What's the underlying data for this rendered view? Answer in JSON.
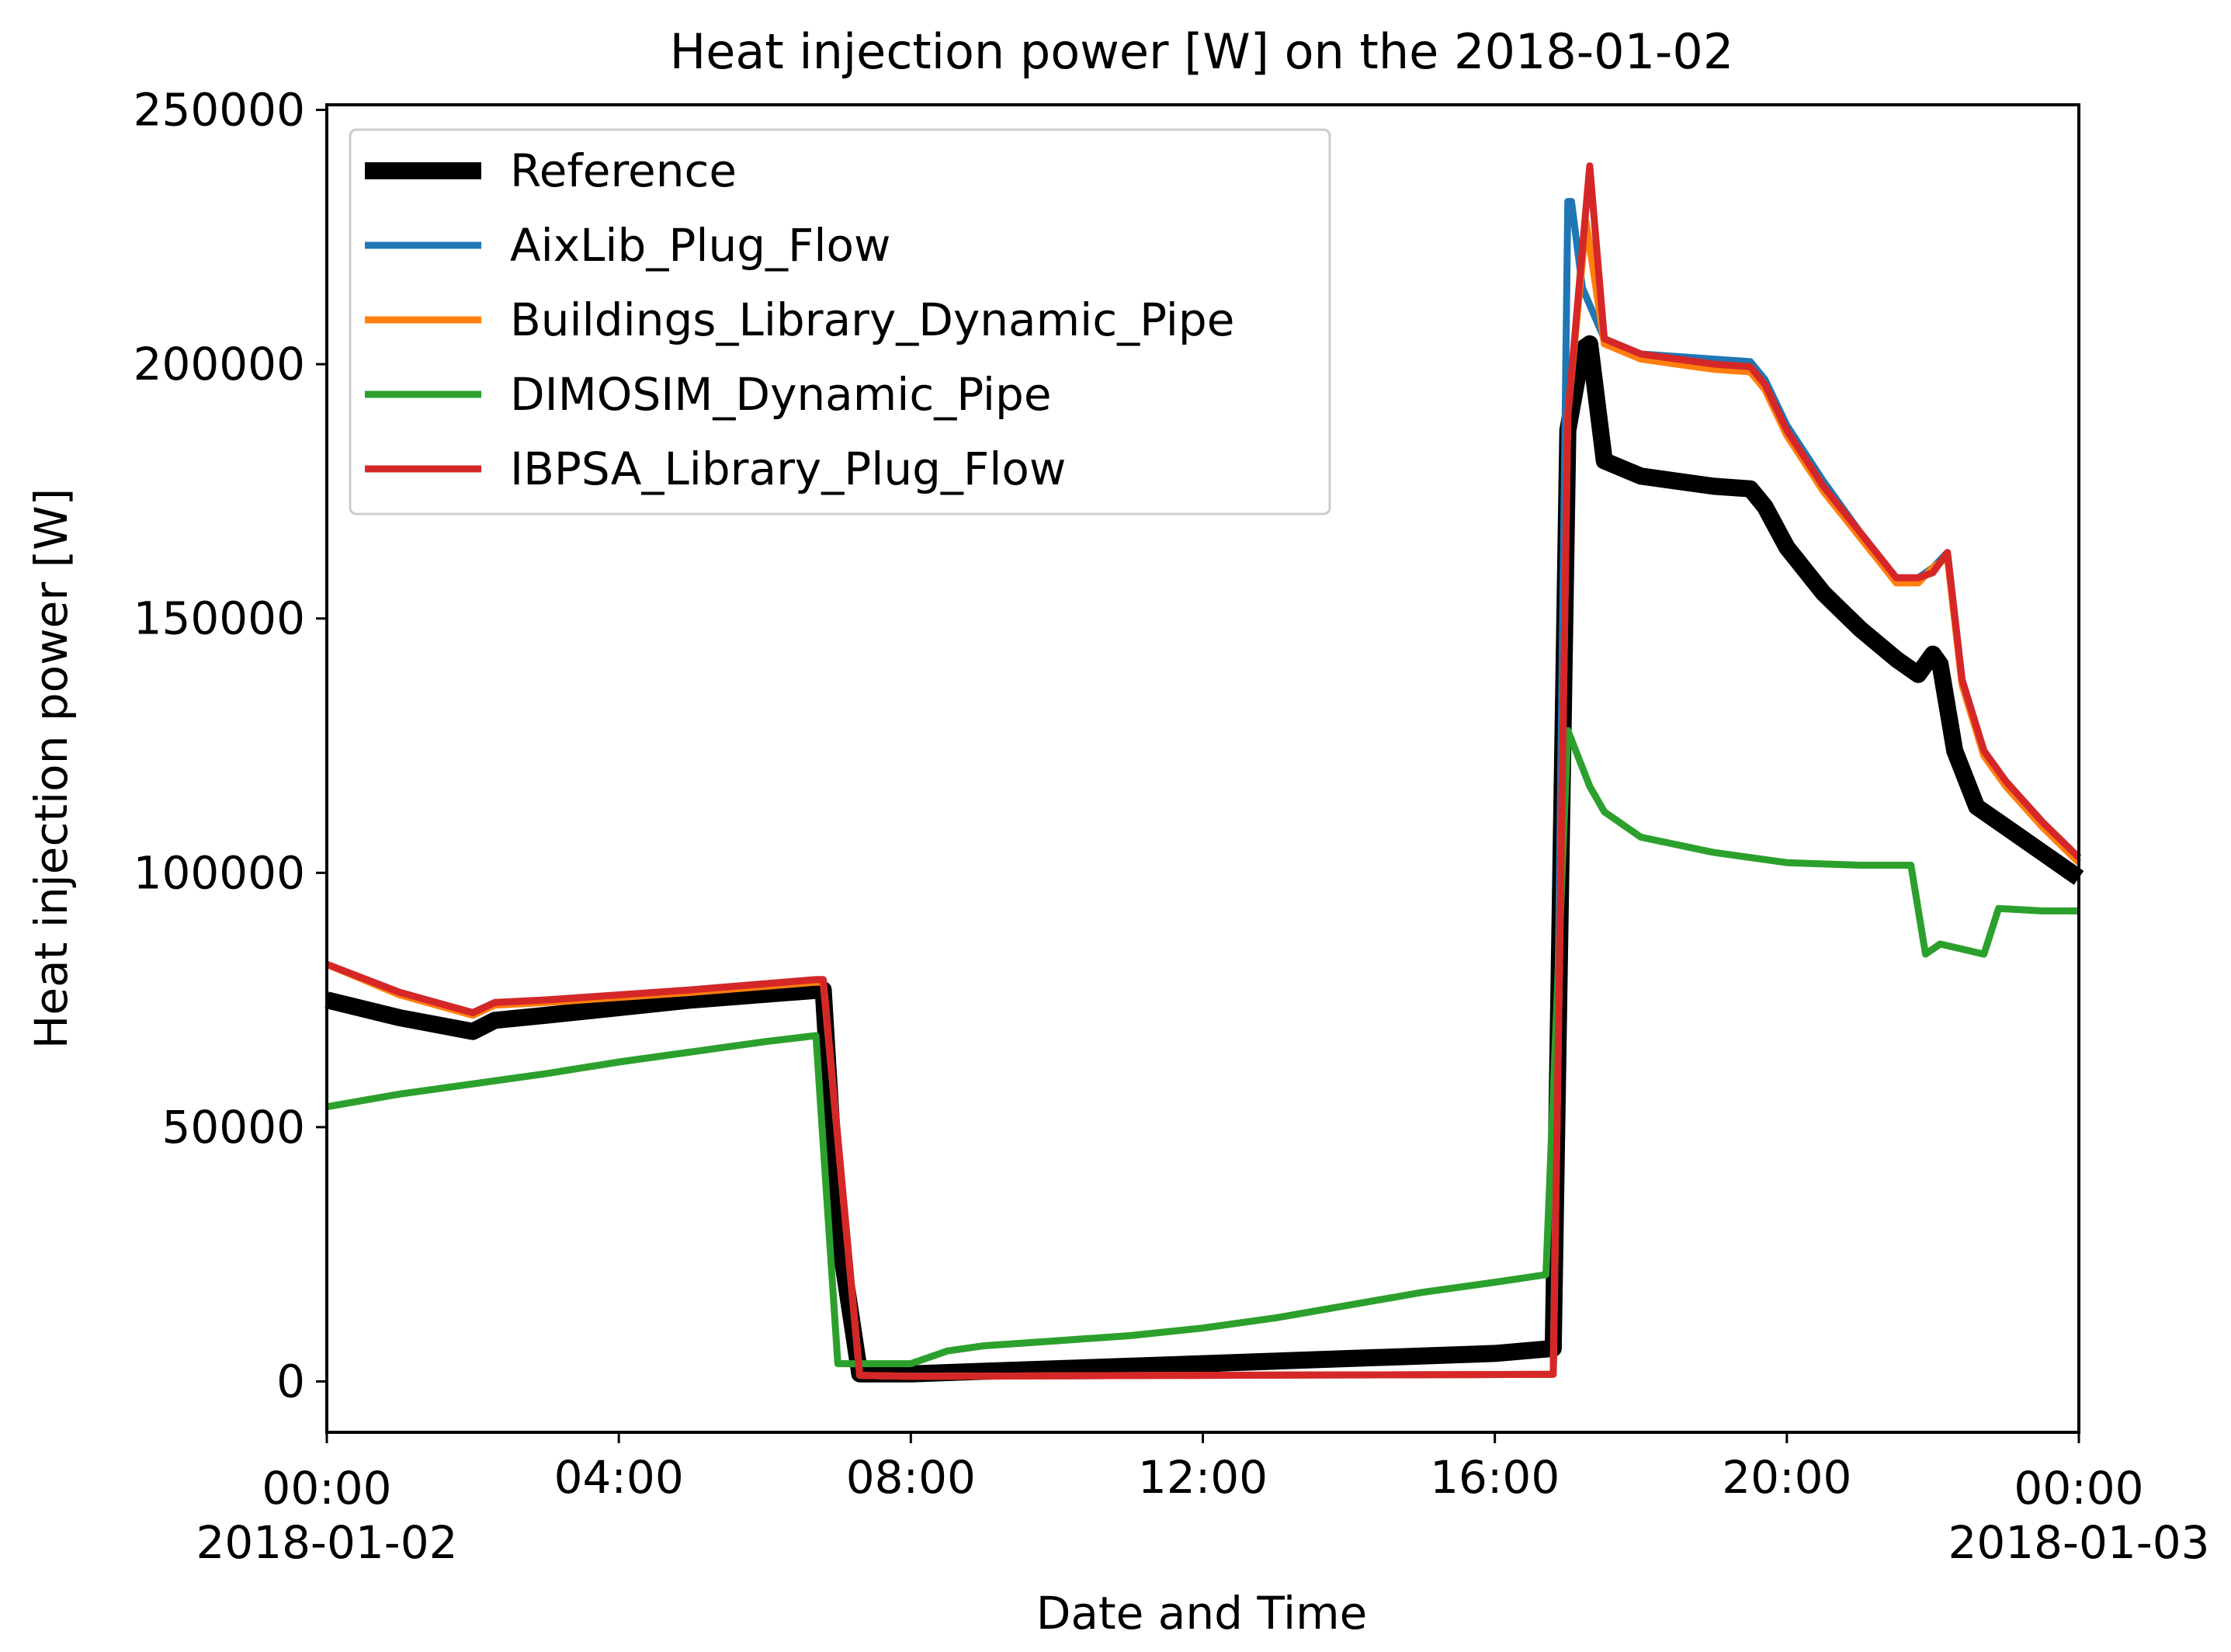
{
  "chart_data": {
    "type": "line",
    "title": "Heat injection power [W] on the 2018-01-02",
    "xlabel": "Date and Time",
    "ylabel": "Heat injection power [W]",
    "xlim": [
      0,
      24
    ],
    "ylim": [
      -10000,
      251000
    ],
    "x_unit": "hours since 2018-01-02 00:00",
    "y_ticks": [
      0,
      50000,
      100000,
      150000,
      200000,
      250000
    ],
    "y_tick_labels": [
      "0",
      "50000",
      "100000",
      "150000",
      "200000",
      "250000"
    ],
    "x_ticks": [
      0,
      4,
      8,
      12,
      16,
      20,
      24
    ],
    "x_tick_labels": [
      {
        "time": "00:00",
        "date": "2018-01-02"
      },
      {
        "time": "04:00",
        "date": ""
      },
      {
        "time": "08:00",
        "date": ""
      },
      {
        "time": "12:00",
        "date": ""
      },
      {
        "time": "16:00",
        "date": ""
      },
      {
        "time": "20:00",
        "date": ""
      },
      {
        "time": "00:00",
        "date": "2018-01-03"
      }
    ],
    "legend_position": "top-left",
    "grid": false,
    "series": [
      {
        "name": "Reference",
        "color": "#000000",
        "width": "thick",
        "x": [
          0,
          1,
          2,
          2.3,
          3,
          5,
          6.8,
          7,
          7.3,
          8,
          9,
          12,
          16,
          16.8,
          17,
          17.2,
          17.3,
          17.5,
          18,
          19,
          19.5,
          19.7,
          20,
          20.5,
          21,
          21.5,
          21.8,
          22,
          22.1,
          22.3,
          22.6,
          23,
          23.5,
          24
        ],
        "y": [
          75000,
          71500,
          68800,
          71000,
          72000,
          75000,
          77000,
          30000,
          1500,
          1500,
          2000,
          3500,
          5500,
          6500,
          187000,
          203000,
          204000,
          181000,
          178000,
          176000,
          175500,
          172000,
          164000,
          155000,
          148000,
          142000,
          139000,
          143000,
          141000,
          124000,
          113000,
          109000,
          104000,
          99000
        ]
      },
      {
        "name": "AixLib_Plug_Flow",
        "color": "#1f77b4",
        "width": "normal",
        "x": [
          0,
          1,
          2,
          2.3,
          3,
          5,
          6.7,
          6.8,
          7.3,
          8,
          12,
          16.8,
          17,
          17.05,
          17.2,
          17.5,
          18,
          19,
          19.5,
          19.7,
          20,
          20.5,
          21,
          21.5,
          21.8,
          22,
          22.2,
          22.4,
          22.7,
          23,
          23.5,
          24
        ],
        "y": [
          82000,
          76500,
          72500,
          74500,
          75000,
          77000,
          79000,
          79000,
          1200,
          1000,
          1200,
          1400,
          232000,
          232000,
          215000,
          205000,
          202000,
          201000,
          200500,
          197000,
          188000,
          177000,
          167000,
          158000,
          158000,
          160000,
          163000,
          138000,
          124000,
          118000,
          110000,
          103000
        ]
      },
      {
        "name": "Buildings_Library_Dynamic_Pipe",
        "color": "#ff7f0e",
        "width": "normal",
        "x": [
          0,
          1,
          2,
          2.3,
          3,
          5,
          6.7,
          6.8,
          7.3,
          8,
          12,
          16.8,
          17,
          17.25,
          17.5,
          18,
          19,
          19.5,
          19.7,
          20,
          20.5,
          21,
          21.5,
          21.8,
          22,
          22.2,
          22.4,
          22.7,
          23,
          23.5,
          24
        ],
        "y": [
          82000,
          76000,
          72000,
          74000,
          74500,
          76500,
          78500,
          78500,
          1200,
          1000,
          1200,
          1400,
          190000,
          228000,
          204000,
          201000,
          199000,
          198500,
          195000,
          186000,
          175000,
          166000,
          157000,
          157000,
          160000,
          162000,
          137000,
          123000,
          117000,
          109000,
          102000
        ]
      },
      {
        "name": "DIMOSIM_Dynamic_Pipe",
        "color": "#2ca02c",
        "width": "normal",
        "x": [
          0,
          1,
          2,
          3,
          4,
          5,
          6,
          6.7,
          7,
          8,
          8.5,
          9,
          10,
          11,
          12,
          13,
          14,
          15,
          16,
          16.7,
          17,
          17.3,
          17.5,
          18,
          19,
          20,
          21,
          21.7,
          21.9,
          22.1,
          22.7,
          22.9,
          23.5,
          24
        ],
        "y": [
          54000,
          56500,
          58500,
          60500,
          62800,
          64800,
          66800,
          68000,
          3500,
          3500,
          6000,
          7000,
          8000,
          9000,
          10500,
          12500,
          15000,
          17500,
          19500,
          21000,
          128000,
          117000,
          112000,
          107000,
          104000,
          102000,
          101500,
          101500,
          84000,
          86000,
          84000,
          93000,
          92500,
          92500
        ]
      },
      {
        "name": "IBPSA_Library_Plug_Flow",
        "color": "#d62728",
        "width": "normal",
        "x": [
          0,
          1,
          2,
          2.3,
          3,
          5,
          6.7,
          6.8,
          7.3,
          8,
          12,
          16.8,
          17,
          17.3,
          17.5,
          18,
          19,
          19.5,
          19.7,
          20,
          20.5,
          21,
          21.5,
          21.8,
          22,
          22.2,
          22.4,
          22.7,
          23,
          23.5,
          24
        ],
        "y": [
          82000,
          76500,
          72500,
          74500,
          75000,
          77000,
          79000,
          79000,
          1200,
          1000,
          1200,
          1400,
          190000,
          239000,
          205000,
          202000,
          200000,
          199500,
          196000,
          187000,
          176000,
          167000,
          158000,
          158000,
          159000,
          163000,
          138000,
          124000,
          118000,
          110000,
          103000
        ]
      }
    ]
  }
}
